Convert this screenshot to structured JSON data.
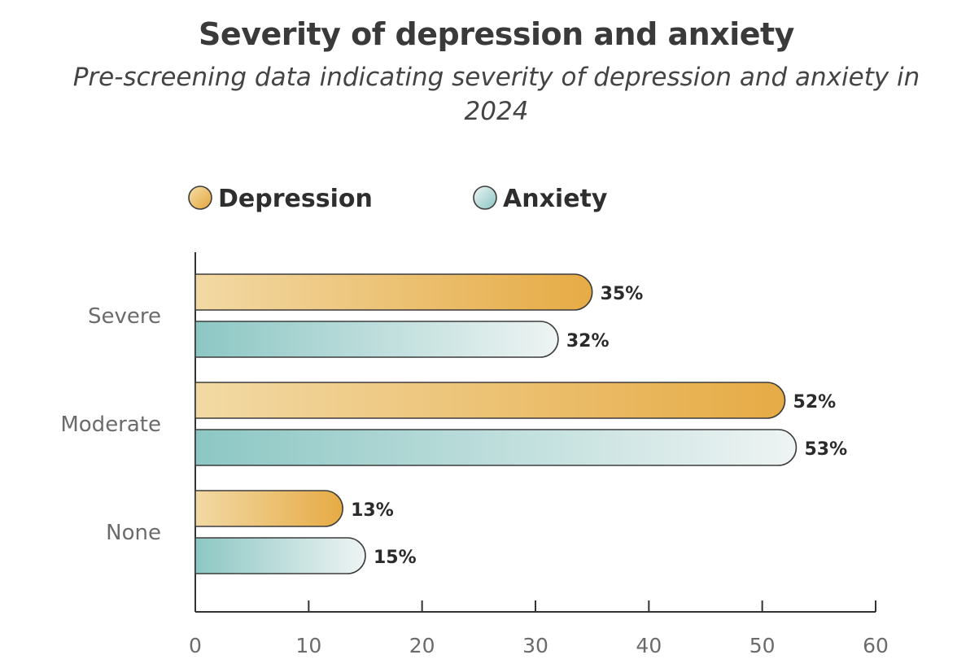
{
  "chart_data": {
    "type": "bar",
    "orientation": "horizontal",
    "title": "Severity of depression and anxiety",
    "subtitle": "Pre-screening data indicating severity of depression and anxiety in 2024",
    "categories": [
      "Severe",
      "Moderate",
      "None"
    ],
    "series": [
      {
        "name": "Depression",
        "values": [
          35,
          52,
          13
        ],
        "labels": [
          "35%",
          "52%",
          "13%"
        ],
        "color_light": "#f2d9a4",
        "color_dark": "#e6ab45"
      },
      {
        "name": "Anxiety",
        "values": [
          32,
          53,
          15
        ],
        "labels": [
          "32%",
          "53%",
          "15%"
        ],
        "color_light": "#e9f1f0",
        "color_dark": "#8cc7c4"
      }
    ],
    "xlim": [
      0,
      60
    ],
    "xticks": [
      0,
      10,
      20,
      30,
      40,
      50,
      60
    ],
    "xlabel": "",
    "ylabel": "",
    "grid": false,
    "legend_position": "top"
  }
}
